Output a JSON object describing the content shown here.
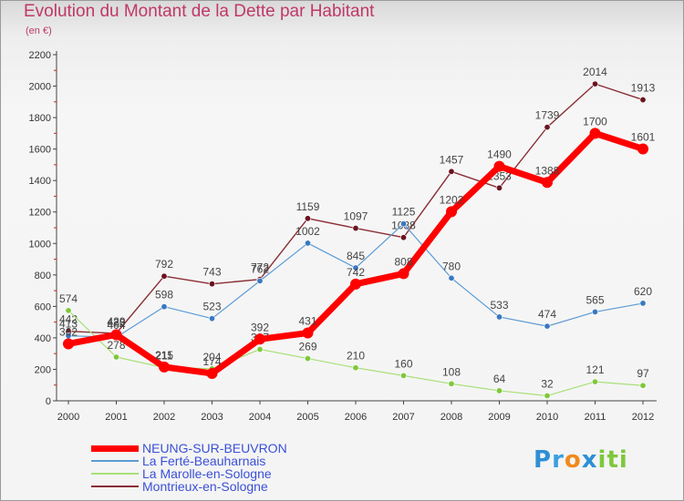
{
  "title": "Evolution du Montant de la Dette par Habitant",
  "subtitle": "(en €)",
  "logo_text": "Proxiti",
  "chart_data": {
    "type": "line",
    "title": "Evolution du Montant de la Dette par Habitant",
    "subtitle": "(en €)",
    "xlabel": "",
    "ylabel": "",
    "ylim": [
      0,
      2200
    ],
    "yticks": [
      0,
      200,
      400,
      600,
      800,
      1000,
      1200,
      1400,
      1600,
      1800,
      2000,
      2200
    ],
    "grid": false,
    "legend": "bottom-left",
    "categories": [
      "2000",
      "2001",
      "2002",
      "2003",
      "2004",
      "2005",
      "2006",
      "2007",
      "2008",
      "2009",
      "2010",
      "2011",
      "2012"
    ],
    "series": [
      {
        "name": "Montrieux-en-Sologne",
        "color": "#8a2e34",
        "point_color": "#6a1420",
        "width": 1.4,
        "marker": 3.2,
        "values": [
          442,
          429,
          792,
          743,
          772,
          1159,
          1097,
          1038,
          1457,
          1353,
          1739,
          2014,
          1913
        ]
      },
      {
        "name": "La Ferté-Beauharnais",
        "color": "#5b9bd5",
        "point_color": "#3a78c0",
        "width": 1.2,
        "marker": 3.2,
        "values": [
          413,
          404,
          598,
          523,
          762,
          1002,
          845,
          1125,
          780,
          533,
          474,
          565,
          620
        ]
      },
      {
        "name": "La Marolle-en-Sologne",
        "color": "#a8e078",
        "point_color": "#7ec83c",
        "width": 1.2,
        "marker": 3.2,
        "values": [
          574,
          278,
          211,
          204,
          327,
          269,
          210,
          160,
          108,
          64,
          32,
          121,
          97
        ]
      },
      {
        "name": "NEUNG-SUR-BEUVRON",
        "color": "#ff0000",
        "point_color": "#ff0000",
        "width": 7,
        "marker": 6,
        "values": [
          362,
          420,
          215,
          174,
          392,
          431,
          742,
          808,
          1202,
          1490,
          1388,
          1700,
          1601
        ]
      }
    ],
    "legend_order": [
      "NEUNG-SUR-BEUVRON",
      "La Ferté-Beauharnais",
      "La Marolle-en-Sologne",
      "Montrieux-en-Sologne"
    ]
  }
}
